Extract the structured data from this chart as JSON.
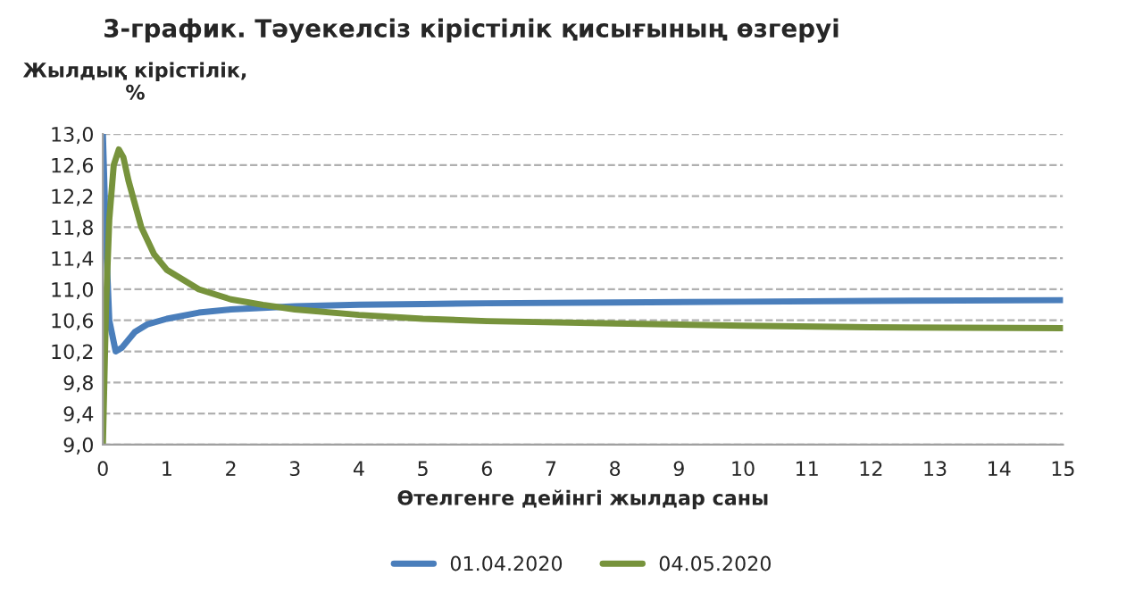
{
  "chart_data": {
    "type": "line",
    "title": "3-график. Тәуекелсіз кірістілік қисығының өзгеруі",
    "xlabel": "Өтелгенге дейінгі жылдар саны",
    "ylabel": "Жылдық кірістілік,\n%",
    "series": [
      {
        "name": "01.04.2020",
        "color": "#4a7ebb",
        "x": [
          0,
          0.05,
          0.1,
          0.2,
          0.3,
          0.5,
          0.7,
          1,
          1.5,
          2,
          2.5,
          3,
          4,
          5,
          6,
          8,
          10,
          12,
          15
        ],
        "values": [
          13.0,
          11.6,
          10.6,
          10.2,
          10.25,
          10.45,
          10.55,
          10.62,
          10.7,
          10.74,
          10.76,
          10.78,
          10.8,
          10.81,
          10.82,
          10.83,
          10.84,
          10.85,
          10.86
        ]
      },
      {
        "name": "04.05.2020",
        "color": "#77933c",
        "x": [
          0,
          0.05,
          0.1,
          0.17,
          0.25,
          0.32,
          0.4,
          0.6,
          0.8,
          1,
          1.5,
          2,
          2.5,
          3,
          4,
          5,
          6,
          8,
          10,
          12,
          15
        ],
        "values": [
          9.0,
          10.8,
          11.9,
          12.6,
          12.8,
          12.7,
          12.4,
          11.8,
          11.45,
          11.25,
          11.0,
          10.87,
          10.8,
          10.74,
          10.67,
          10.62,
          10.59,
          10.56,
          10.53,
          10.51,
          10.5
        ]
      }
    ],
    "xlim": [
      0,
      15
    ],
    "xticks": [
      0,
      1,
      2,
      3,
      4,
      5,
      6,
      7,
      8,
      9,
      10,
      11,
      12,
      13,
      14,
      15
    ],
    "ylim": [
      9.0,
      13.0
    ],
    "yticks": [
      {
        "value": 9.0,
        "label": "9,0"
      },
      {
        "value": 9.4,
        "label": "9,4"
      },
      {
        "value": 9.8,
        "label": "9,8"
      },
      {
        "value": 10.2,
        "label": "10,2"
      },
      {
        "value": 10.6,
        "label": "10,6"
      },
      {
        "value": 11.0,
        "label": "11,0"
      },
      {
        "value": 11.4,
        "label": "11,4"
      },
      {
        "value": 11.8,
        "label": "11,8"
      },
      {
        "value": 12.2,
        "label": "12,2"
      },
      {
        "value": 12.6,
        "label": "12,6"
      },
      {
        "value": 13.0,
        "label": "13,0"
      }
    ],
    "grid": "y",
    "legend": "bottom",
    "marker": "none",
    "line_style": "solid"
  }
}
